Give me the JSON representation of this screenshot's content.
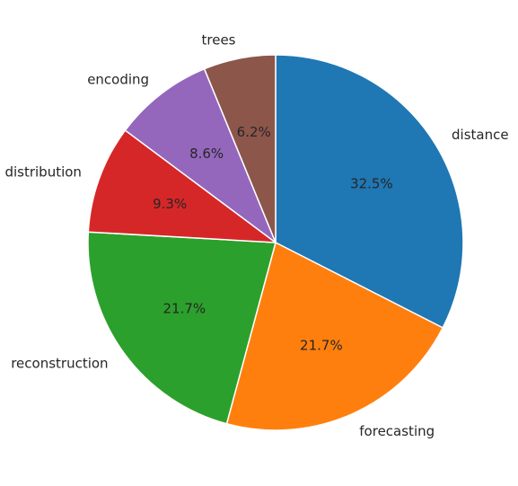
{
  "chart_data": {
    "type": "pie",
    "title": "",
    "start_angle_deg": 90,
    "direction": "clockwise",
    "legend": "none",
    "slices": [
      {
        "label": "distance",
        "value": 32.5,
        "pct_text": "32.5%",
        "color": "#1f77b4"
      },
      {
        "label": "forecasting",
        "value": 21.7,
        "pct_text": "21.7%",
        "color": "#ff7f0e"
      },
      {
        "label": "reconstruction",
        "value": 21.7,
        "pct_text": "21.7%",
        "color": "#2ca02c"
      },
      {
        "label": "distribution",
        "value": 9.3,
        "pct_text": "9.3%",
        "color": "#d62728"
      },
      {
        "label": "encoding",
        "value": 8.6,
        "pct_text": "8.6%",
        "color": "#9467bd"
      },
      {
        "label": "trees",
        "value": 6.2,
        "pct_text": "6.2%",
        "color": "#8c564b"
      }
    ]
  }
}
